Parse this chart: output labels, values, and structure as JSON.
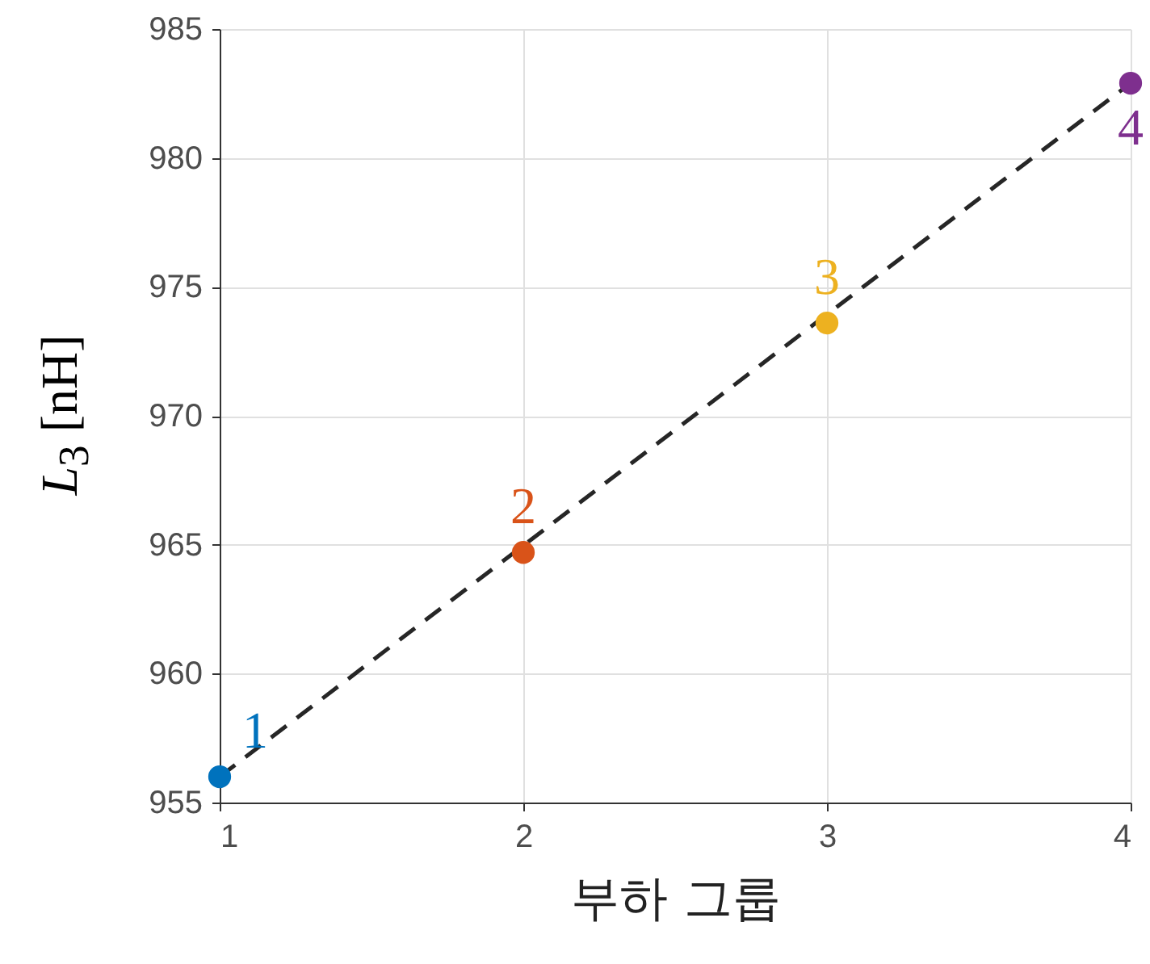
{
  "chart_data": {
    "type": "scatter",
    "xlabel": "부하 그룹",
    "ylabel": "L$_{3}$ [nH]",
    "x": [
      1,
      2,
      3,
      4
    ],
    "series": [
      {
        "colors": [
          "#0072bd",
          "#d95319",
          "#edb120",
          "#7e2f8e"
        ],
        "values": [
          956.0,
          964.7,
          973.6,
          982.9
        ],
        "marker": "circle"
      },
      {
        "type": "line",
        "color": "#262626",
        "x": [
          1,
          4
        ],
        "values": [
          956.0,
          982.9
        ],
        "line_style": "dashed"
      }
    ],
    "annotations": [
      {
        "text": "1",
        "x": 1,
        "y": 956.0
      },
      {
        "text": "2",
        "x": 2,
        "y": 964.7
      },
      {
        "text": "3",
        "x": 3,
        "y": 973.6
      },
      {
        "text": "4",
        "x": 4,
        "y": 982.9
      }
    ],
    "xlim": [
      1,
      4
    ],
    "xticks": [
      1,
      2,
      3,
      4
    ],
    "ylim": [
      955,
      985
    ],
    "yticks": [
      955,
      960,
      965,
      970,
      975,
      980,
      985
    ],
    "grid": true
  }
}
